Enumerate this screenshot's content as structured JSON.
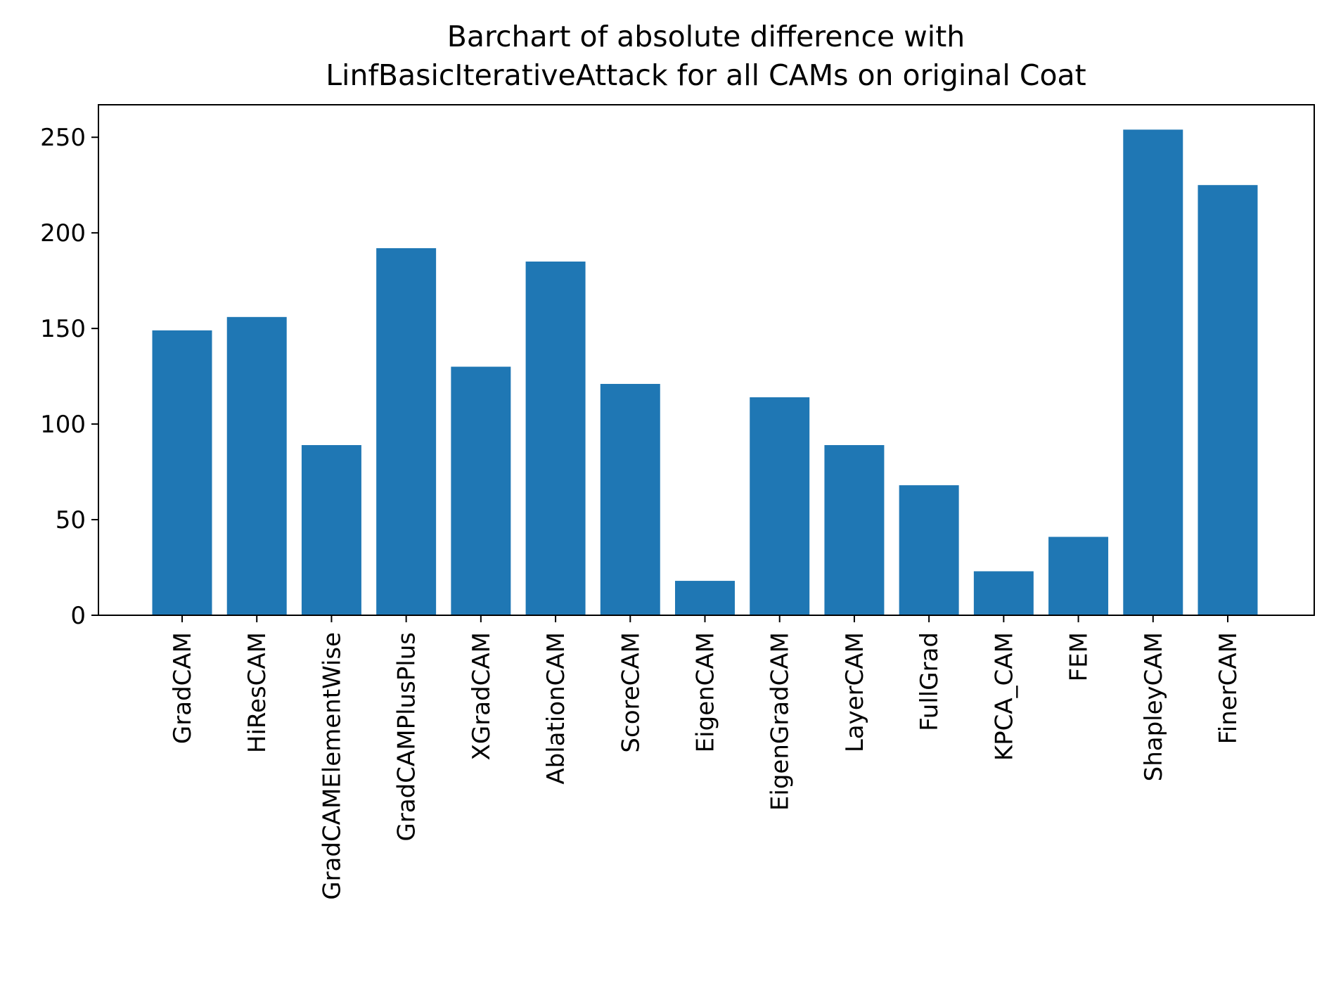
{
  "chart_data": {
    "type": "bar",
    "title": "Barchart of absolute difference with\nLinfBasicIterativeAttack for all CAMs on original Coat",
    "title_lines": [
      "Barchart of absolute difference with",
      "LinfBasicIterativeAttack for all CAMs on original Coat"
    ],
    "xlabel": "",
    "ylabel": "",
    "categories": [
      "GradCAM",
      "HiResCAM",
      "GradCAMElementWise",
      "GradCAMPlusPlus",
      "XGradCAM",
      "AblationCAM",
      "ScoreCAM",
      "EigenCAM",
      "EigenGradCAM",
      "LayerCAM",
      "FullGrad",
      "KPCA_CAM",
      "FEM",
      "ShapleyCAM",
      "FinerCAM"
    ],
    "values": [
      149,
      156,
      89,
      192,
      130,
      185,
      121,
      18,
      114,
      89,
      68,
      23,
      41,
      254,
      225
    ],
    "ylim": [
      0,
      267
    ],
    "yticks": [
      0,
      50,
      100,
      150,
      200,
      250
    ],
    "ytick_labels": [
      "0",
      "50",
      "100",
      "150",
      "200",
      "250"
    ],
    "bar_color": "#1f77b4",
    "grid": false,
    "legend": "none"
  }
}
